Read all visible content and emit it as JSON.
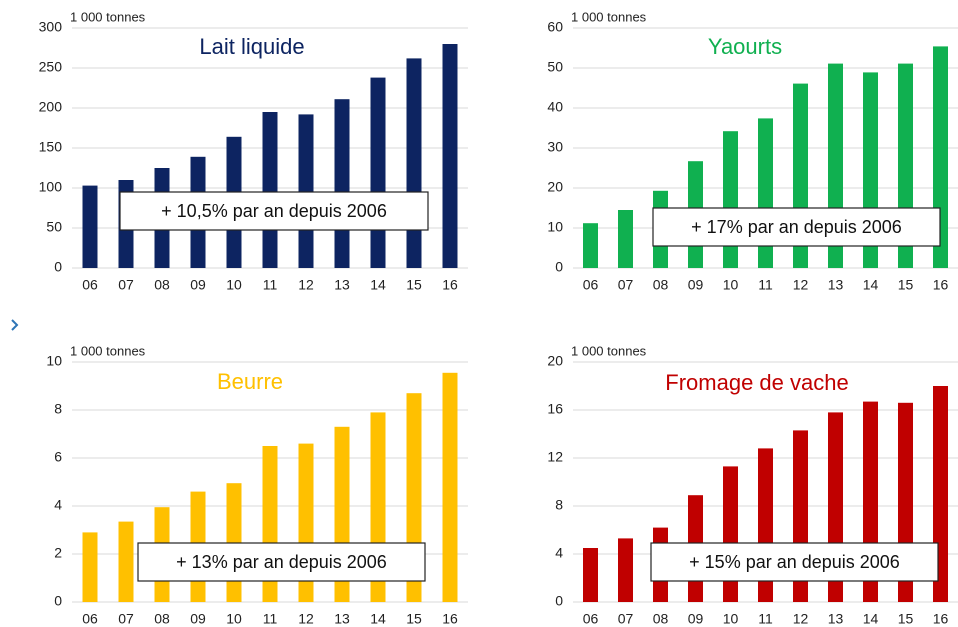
{
  "chart_data": [
    {
      "type": "bar",
      "title": "Lait liquide",
      "unit_label": "1 000 tonnes",
      "annotation": "+ 10,5% par an depuis 2006",
      "color": "#0d2461",
      "categories": [
        "06",
        "07",
        "08",
        "09",
        "10",
        "11",
        "12",
        "13",
        "14",
        "15",
        "16"
      ],
      "values": [
        103,
        110,
        125,
        139,
        164,
        195,
        192,
        211,
        238,
        262,
        280
      ],
      "ylim": [
        0,
        300
      ],
      "yticks": [
        0,
        50,
        100,
        150,
        200,
        250,
        300
      ],
      "grid": true
    },
    {
      "type": "bar",
      "title": "Yaourts",
      "unit_label": "1 000 tonnes",
      "annotation": "+ 17% par an depuis 2006",
      "color": "#10b050",
      "categories": [
        "06",
        "07",
        "08",
        "09",
        "10",
        "11",
        "12",
        "13",
        "14",
        "15",
        "16"
      ],
      "values": [
        11.2,
        14.5,
        19.3,
        26.7,
        34.2,
        37.4,
        46.1,
        51.1,
        48.9,
        51.1,
        55.4
      ],
      "ylim": [
        0,
        60
      ],
      "yticks": [
        0,
        10,
        20,
        30,
        40,
        50,
        60
      ],
      "grid": true
    },
    {
      "type": "bar",
      "title": "Beurre",
      "unit_label": "1 000 tonnes",
      "annotation": "+ 13% par an depuis 2006",
      "color": "#ffc000",
      "categories": [
        "06",
        "07",
        "08",
        "09",
        "10",
        "11",
        "12",
        "13",
        "14",
        "15",
        "16"
      ],
      "values": [
        2.9,
        3.35,
        3.95,
        4.6,
        4.95,
        6.5,
        6.6,
        7.3,
        7.9,
        8.7,
        9.55
      ],
      "ylim": [
        0,
        10
      ],
      "yticks": [
        0,
        2,
        4,
        6,
        8,
        10
      ],
      "grid": true
    },
    {
      "type": "bar",
      "title": "Fromage de vache",
      "unit_label": "1 000 tonnes",
      "annotation": "+ 15% par an depuis 2006",
      "color": "#c00000",
      "categories": [
        "06",
        "07",
        "08",
        "09",
        "10",
        "11",
        "12",
        "13",
        "14",
        "15",
        "16"
      ],
      "values": [
        4.5,
        5.3,
        6.2,
        8.9,
        11.3,
        12.8,
        14.3,
        15.8,
        16.7,
        16.6,
        18.0
      ],
      "ylim": [
        0,
        20
      ],
      "yticks": [
        0,
        4,
        8,
        12,
        16,
        20
      ],
      "grid": true
    }
  ]
}
